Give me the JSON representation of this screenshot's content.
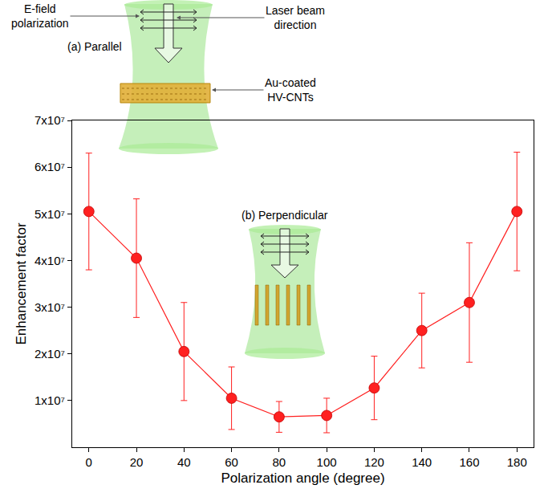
{
  "chart_data": {
    "type": "line",
    "x_label": "Polarization angle (degree)",
    "y_label": "Enhancement factor",
    "x": [
      0,
      20,
      40,
      60,
      80,
      100,
      120,
      140,
      160,
      180
    ],
    "values": [
      50500000,
      40500000,
      20500000,
      10500000,
      6500000,
      6800000,
      12700000,
      25000000,
      31000000,
      50500000
    ],
    "errors": [
      12500000,
      12700000,
      10500000,
      6700000,
      3300000,
      3700000,
      6800000,
      8000000,
      12800000,
      12700000
    ],
    "color": "#ff2020",
    "marker": "circle",
    "line_style": "solid",
    "xlim": [
      -7,
      187
    ],
    "xticks": [
      0,
      20,
      40,
      60,
      80,
      100,
      120,
      140,
      160,
      180
    ],
    "ylim": [
      0,
      70000000
    ],
    "yticks": [
      {
        "value": 10000000,
        "label": "1x10⁷"
      },
      {
        "value": 20000000,
        "label": "2x10⁷"
      },
      {
        "value": 30000000,
        "label": "3x10⁷"
      },
      {
        "value": 40000000,
        "label": "4x10⁷"
      },
      {
        "value": 50000000,
        "label": "5x10⁷"
      },
      {
        "value": 60000000,
        "label": "6x10⁷"
      },
      {
        "value": 70000000,
        "label": "7x10⁷"
      }
    ],
    "grid": false,
    "annotations": [
      "E-field polarization",
      "Laser beam direction",
      "(a) Parallel",
      "Au-coated HV-CNTs",
      "(b) Perpendicular"
    ]
  }
}
